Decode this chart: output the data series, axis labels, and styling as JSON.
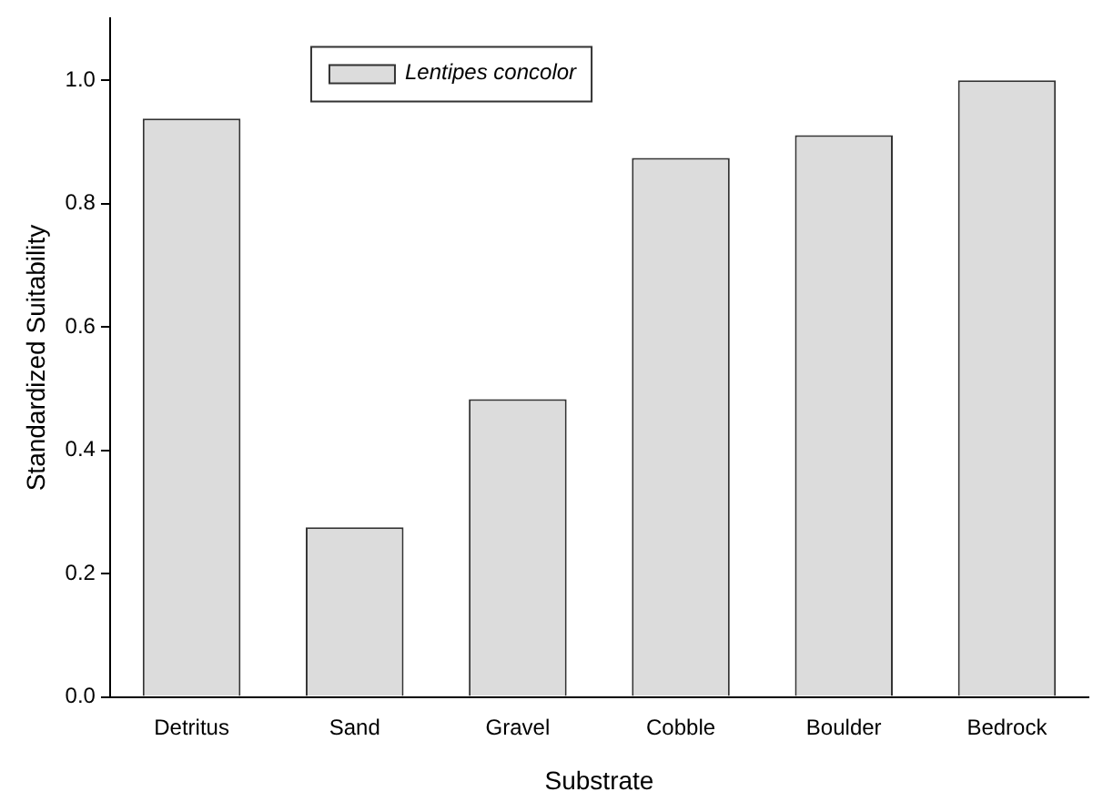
{
  "chart_data": {
    "type": "bar",
    "xlabel": "Substrate",
    "ylabel": "Standardized Suitability",
    "categories": [
      "Detritus",
      "Sand",
      "Gravel",
      "Cobble",
      "Boulder",
      "Bedrock"
    ],
    "series": [
      {
        "name": "Lentipes concolor",
        "color": "#dcdcdc",
        "values": [
          0.938,
          0.275,
          0.483,
          0.874,
          0.911,
          1.0
        ]
      }
    ],
    "ylim": [
      0,
      1.1
    ],
    "yticks": [
      {
        "value": 0,
        "label": "0.0"
      },
      {
        "value": 0.2,
        "label": "0.2"
      },
      {
        "value": 0.4,
        "label": "0.4"
      },
      {
        "value": 0.6,
        "label": "0.6"
      },
      {
        "value": 0.8,
        "label": "0.8"
      },
      {
        "value": 1.0,
        "label": "1.0"
      }
    ],
    "grid": false,
    "legend": "top left"
  }
}
